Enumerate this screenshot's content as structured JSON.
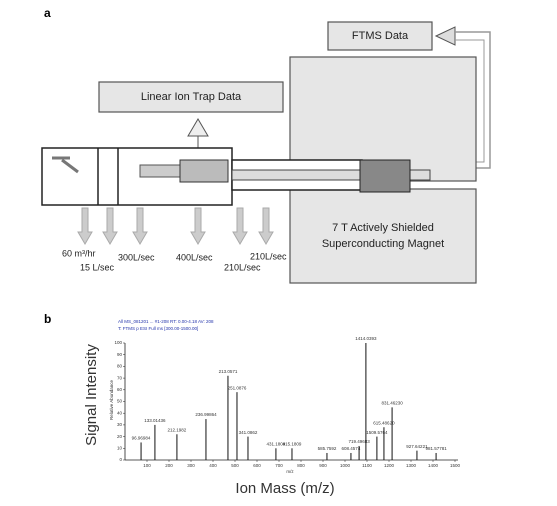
{
  "panel_a": {
    "label": "a",
    "ftms": "FTMS Data",
    "lit": "Linear Ion Trap Data",
    "magnet": [
      "7 T Actively Shielded",
      "Superconducting Magnet"
    ],
    "pumping": [
      "60 m³/hr",
      "15 L/sec",
      "300L/sec",
      "400L/sec",
      "210L/sec",
      "210L/sec"
    ]
  },
  "panel_b": {
    "label": "b",
    "header": [
      "All MS_081201 ... #1-208  RT: 0.00-4.18  AV: 208",
      "T: FTMS p ESI Full ms [300.00-1500.00]"
    ],
    "chart_data": {
      "type": "spectrum",
      "y_label": "Signal Intensity",
      "x_label": "Ion Mass (m/z)",
      "y_inner_label": "Relative Abundance",
      "x_inner_label": "m/z",
      "xlim": [
        0,
        1500
      ],
      "xticks": [
        100,
        200,
        300,
        400,
        500,
        600,
        700,
        800,
        900,
        1000,
        1100,
        1200,
        1300,
        1400,
        1500
      ],
      "ylim": [
        0,
        100
      ],
      "yticks": [
        0,
        10,
        20,
        30,
        40,
        50,
        60,
        70,
        80,
        90,
        100
      ],
      "color": "#111111",
      "x": [
        73,
        136,
        236,
        368,
        468,
        509,
        559,
        686,
        759,
        918,
        1027,
        1064,
        1095,
        1145,
        1177,
        1214,
        1327,
        1414
      ],
      "values": [
        15,
        30,
        22,
        35,
        72,
        58,
        20,
        10,
        10,
        6,
        6,
        12,
        100,
        20,
        28,
        45,
        8,
        6
      ],
      "peak_labels": [
        "96.96984",
        "133.01436",
        "212.1982",
        "236.99864",
        "213.0571",
        "251.0876",
        "341.0862",
        "431.1809",
        "415.1809",
        "585.7592",
        "608.4574",
        "719.49683",
        "1414.0393",
        "1509.5764",
        "615.48620",
        "831.46230",
        "927.64221",
        "981.57781"
      ]
    }
  }
}
